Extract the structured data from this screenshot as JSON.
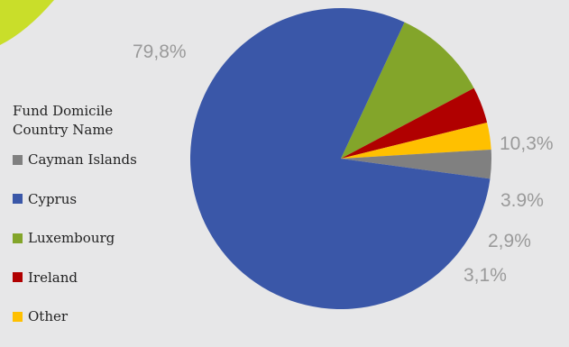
{
  "chart_data": {
    "type": "pie",
    "legend_title": "Fund Domicile Country Name",
    "legend_position": "left",
    "slices": [
      {
        "name": "Cayman Islands",
        "value": 3.1,
        "label": "3,1%",
        "color": "#808080"
      },
      {
        "name": "Cyprus",
        "value": 79.8,
        "label": "79,8%",
        "color": "#3a57a8"
      },
      {
        "name": "Luxembourg",
        "value": 10.3,
        "label": "10,3%",
        "color": "#83a52a"
      },
      {
        "name": "Ireland",
        "value": 3.9,
        "label": "3.9%",
        "color": "#b00000"
      },
      {
        "name": "Other",
        "value": 2.9,
        "label": "2,9%",
        "color": "#ffc000"
      }
    ],
    "drawing_order": [
      "Luxembourg",
      "Ireland",
      "Other",
      "Cayman Islands",
      "Cyprus"
    ]
  },
  "colors": {
    "background": "#e7e7e8",
    "corner_accent": "#c9de2a"
  }
}
